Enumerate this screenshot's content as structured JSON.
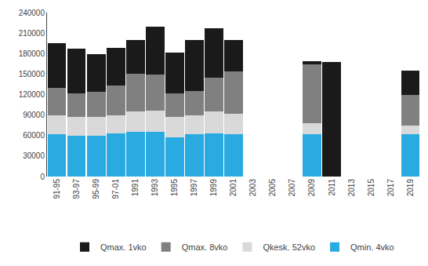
{
  "chart_data": {
    "type": "bar",
    "stacked": true,
    "categories": [
      "91-95",
      "93-97",
      "95-99",
      "97-01",
      "1991",
      "1993",
      "1995",
      "1997",
      "1999",
      "2001",
      "2003",
      "2005",
      "2007",
      "2009",
      "2011",
      "2013",
      "2015",
      "2017",
      "2019"
    ],
    "series": [
      {
        "name": "Qmin. 4vko",
        "color": "#29ABE2",
        "values": [
          62000,
          60000,
          60000,
          63000,
          65000,
          65000,
          57000,
          62000,
          63000,
          62000,
          0,
          0,
          0,
          62000,
          0,
          0,
          0,
          0,
          62000
        ]
      },
      {
        "name": "Qkesk. 52vko",
        "color": "#D9D9D9",
        "values": [
          28000,
          27000,
          27000,
          27000,
          30000,
          32000,
          30000,
          28000,
          32000,
          30000,
          0,
          0,
          0,
          16000,
          0,
          0,
          0,
          0,
          13000
        ]
      },
      {
        "name": "Qmax. 8vko",
        "color": "#808080",
        "values": [
          40000,
          35000,
          37000,
          43000,
          55000,
          52000,
          35000,
          35000,
          50000,
          62000,
          0,
          0,
          0,
          86000,
          0,
          0,
          0,
          0,
          45000
        ]
      },
      {
        "name": "Qmax. 1vko",
        "color": "#1A1A1A",
        "values": [
          65000,
          65000,
          55000,
          55000,
          50000,
          70000,
          60000,
          75000,
          72000,
          46000,
          0,
          0,
          0,
          5000,
          168000,
          0,
          0,
          0,
          35000
        ]
      }
    ],
    "ylim": [
      0,
      240000
    ],
    "yticks": [
      0,
      30000,
      60000,
      90000,
      120000,
      150000,
      180000,
      210000,
      240000
    ],
    "grid": false,
    "legend": "bottom"
  }
}
